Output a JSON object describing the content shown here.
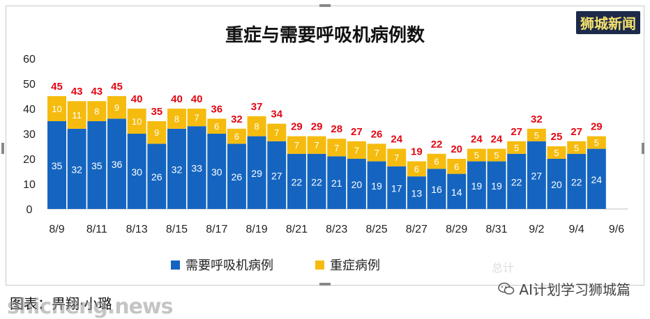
{
  "brand": {
    "label": "狮城新闻"
  },
  "caption": {
    "label": "图表：畀翔·小璐"
  },
  "watermark": {
    "left": "shicheng.news",
    "right": "AI计划学习狮城篇"
  },
  "ghost_text": "总计",
  "colors": {
    "ventilator": "#1565c0",
    "severe": "#f5bc0f",
    "total_label": "#e30613"
  },
  "chart_data": {
    "type": "bar",
    "stacked": true,
    "title": "重症与需要呼吸机病例数",
    "categories": [
      "8/9",
      "8/10",
      "8/11",
      "8/12",
      "8/13",
      "8/14",
      "8/15",
      "8/16",
      "8/17",
      "8/18",
      "8/19",
      "8/20",
      "8/21",
      "8/22",
      "8/23",
      "8/24",
      "8/25",
      "8/26",
      "8/27",
      "8/28",
      "8/29",
      "8/30",
      "8/31",
      "9/1",
      "9/2",
      "9/3",
      "9/4",
      "9/5"
    ],
    "x_tick_labels": [
      "8/9",
      "8/11",
      "8/13",
      "8/15",
      "8/17",
      "8/19",
      "8/21",
      "8/23",
      "8/25",
      "8/27",
      "8/29",
      "8/31",
      "9/2",
      "9/4",
      "9/6"
    ],
    "series": [
      {
        "name": "需要呼吸机病例",
        "color": "#1565c0",
        "values": [
          35,
          32,
          35,
          36,
          30,
          26,
          32,
          33,
          30,
          26,
          29,
          27,
          22,
          22,
          21,
          20,
          19,
          17,
          13,
          16,
          14,
          19,
          19,
          22,
          27,
          20,
          22,
          24
        ]
      },
      {
        "name": "重症病例",
        "color": "#f5bc0f",
        "values": [
          10,
          11,
          8,
          9,
          10,
          9,
          8,
          7,
          6,
          6,
          8,
          7,
          7,
          7,
          7,
          7,
          7,
          7,
          6,
          6,
          6,
          5,
          5,
          5,
          5,
          5,
          5,
          5
        ]
      }
    ],
    "totals": [
      45,
      43,
      43,
      45,
      40,
      35,
      40,
      40,
      36,
      32,
      37,
      34,
      29,
      29,
      28,
      27,
      26,
      24,
      19,
      22,
      20,
      24,
      24,
      27,
      32,
      25,
      27,
      29
    ],
    "yticks": [
      0,
      10,
      20,
      30,
      40,
      50,
      60
    ],
    "ylim": [
      0,
      60
    ],
    "legend_position": "bottom"
  }
}
